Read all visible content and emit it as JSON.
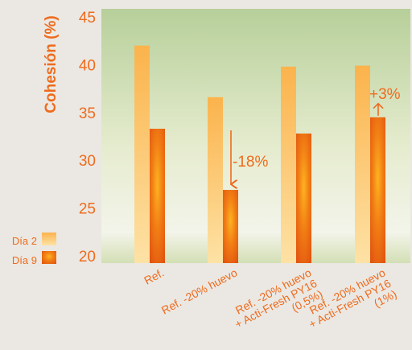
{
  "chart_data": {
    "type": "bar",
    "title": "",
    "xlabel": "",
    "ylabel": "Cohesión (%)",
    "ylim": [
      20,
      45
    ],
    "yticks": [
      20,
      25,
      30,
      35,
      40,
      45
    ],
    "grid": false,
    "legend_position": "bottom-left",
    "categories": [
      [
        "Ref."
      ],
      [
        "Ref. -20% huevo"
      ],
      [
        "Ref. -20% huevo",
        "+ Acti-Fresh PY16",
        "(0,5%)"
      ],
      [
        "Ref. -20% huevo",
        "+ Acti-Fresh PY16",
        "(1%)"
      ]
    ],
    "series": [
      {
        "name": "Día 2",
        "values": [
          42.0,
          36.6,
          39.8,
          39.9
        ]
      },
      {
        "name": "Día 9",
        "values": [
          33.3,
          26.9,
          32.8,
          34.5
        ]
      }
    ],
    "annotations": [
      {
        "text": "-18%",
        "category_index": 1,
        "arrow": "down"
      },
      {
        "text": "+3%",
        "category_index": 3,
        "arrow": "up"
      }
    ]
  },
  "colors": {
    "background": "#ebe8e3",
    "plot_bg_top": "#b7cf9a",
    "plot_bg_bottom": "#f3f4ea",
    "accent": "#ee6b1d",
    "dia2_light": "#fde2a5",
    "dia2_mid": "#fbb34c",
    "dia9_light": "#fb9b14",
    "dia9_dark": "#e0500f"
  }
}
